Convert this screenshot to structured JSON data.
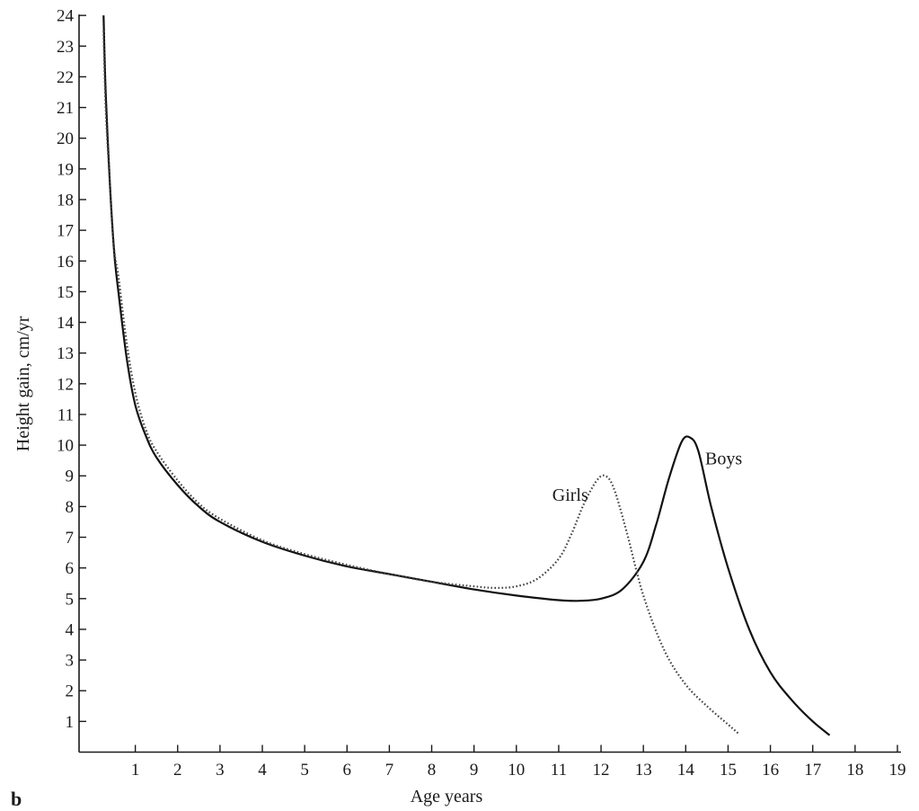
{
  "chart_data": {
    "type": "line",
    "title": "",
    "xlabel": "Age years",
    "ylabel": "Height gain, cm/yr",
    "xlim": [
      0,
      19
    ],
    "ylim": [
      0,
      24
    ],
    "x_ticks": [
      "1",
      "2",
      "3",
      "4",
      "5",
      "6",
      "7",
      "8",
      "9",
      "10",
      "11",
      "12",
      "13",
      "14",
      "15",
      "16",
      "17",
      "18",
      "19"
    ],
    "y_ticks": [
      "1",
      "2",
      "3",
      "4",
      "5",
      "6",
      "7",
      "8",
      "9",
      "10",
      "11",
      "12",
      "13",
      "14",
      "15",
      "16",
      "17",
      "18",
      "19",
      "20",
      "21",
      "22",
      "23",
      "24"
    ],
    "grid": false,
    "legend": "none",
    "panel_label": "b",
    "series": [
      {
        "name": "Boys",
        "style": "solid",
        "color": "#111111",
        "x": [
          0.25,
          0.3,
          0.4,
          0.5,
          0.6,
          0.8,
          1.0,
          1.25,
          1.5,
          2.0,
          2.5,
          3.0,
          4.0,
          5.0,
          6.0,
          7.0,
          8.0,
          9.0,
          10.0,
          11.0,
          11.5,
          12.0,
          12.5,
          13.0,
          13.3,
          13.6,
          13.9,
          14.1,
          14.3,
          14.6,
          15.0,
          15.5,
          16.0,
          16.5,
          17.0,
          17.4
        ],
        "y": [
          24.0,
          21.5,
          18.5,
          16.3,
          15.0,
          12.8,
          11.3,
          10.3,
          9.6,
          8.7,
          8.0,
          7.5,
          6.85,
          6.4,
          6.05,
          5.8,
          5.55,
          5.3,
          5.1,
          4.95,
          4.93,
          5.0,
          5.3,
          6.2,
          7.4,
          8.9,
          10.1,
          10.25,
          9.8,
          8.0,
          6.0,
          4.0,
          2.6,
          1.7,
          1.0,
          0.55
        ]
      },
      {
        "name": "Girls",
        "style": "dotted",
        "color": "#444444",
        "x": [
          0.25,
          0.3,
          0.4,
          0.5,
          0.6,
          0.8,
          1.0,
          1.25,
          1.5,
          2.0,
          2.5,
          3.0,
          4.0,
          5.0,
          6.0,
          7.0,
          8.0,
          9.0,
          9.5,
          10.0,
          10.5,
          11.0,
          11.3,
          11.6,
          11.9,
          12.1,
          12.3,
          12.6,
          13.0,
          13.5,
          14.0,
          14.5,
          15.0,
          15.25
        ],
        "y": [
          23.5,
          21.0,
          18.5,
          16.4,
          15.5,
          13.3,
          11.7,
          10.5,
          9.8,
          8.85,
          8.1,
          7.6,
          6.9,
          6.45,
          6.1,
          5.8,
          5.55,
          5.4,
          5.35,
          5.4,
          5.65,
          6.3,
          7.1,
          8.1,
          8.85,
          9.0,
          8.6,
          7.2,
          5.1,
          3.3,
          2.2,
          1.5,
          0.9,
          0.6
        ]
      }
    ]
  }
}
